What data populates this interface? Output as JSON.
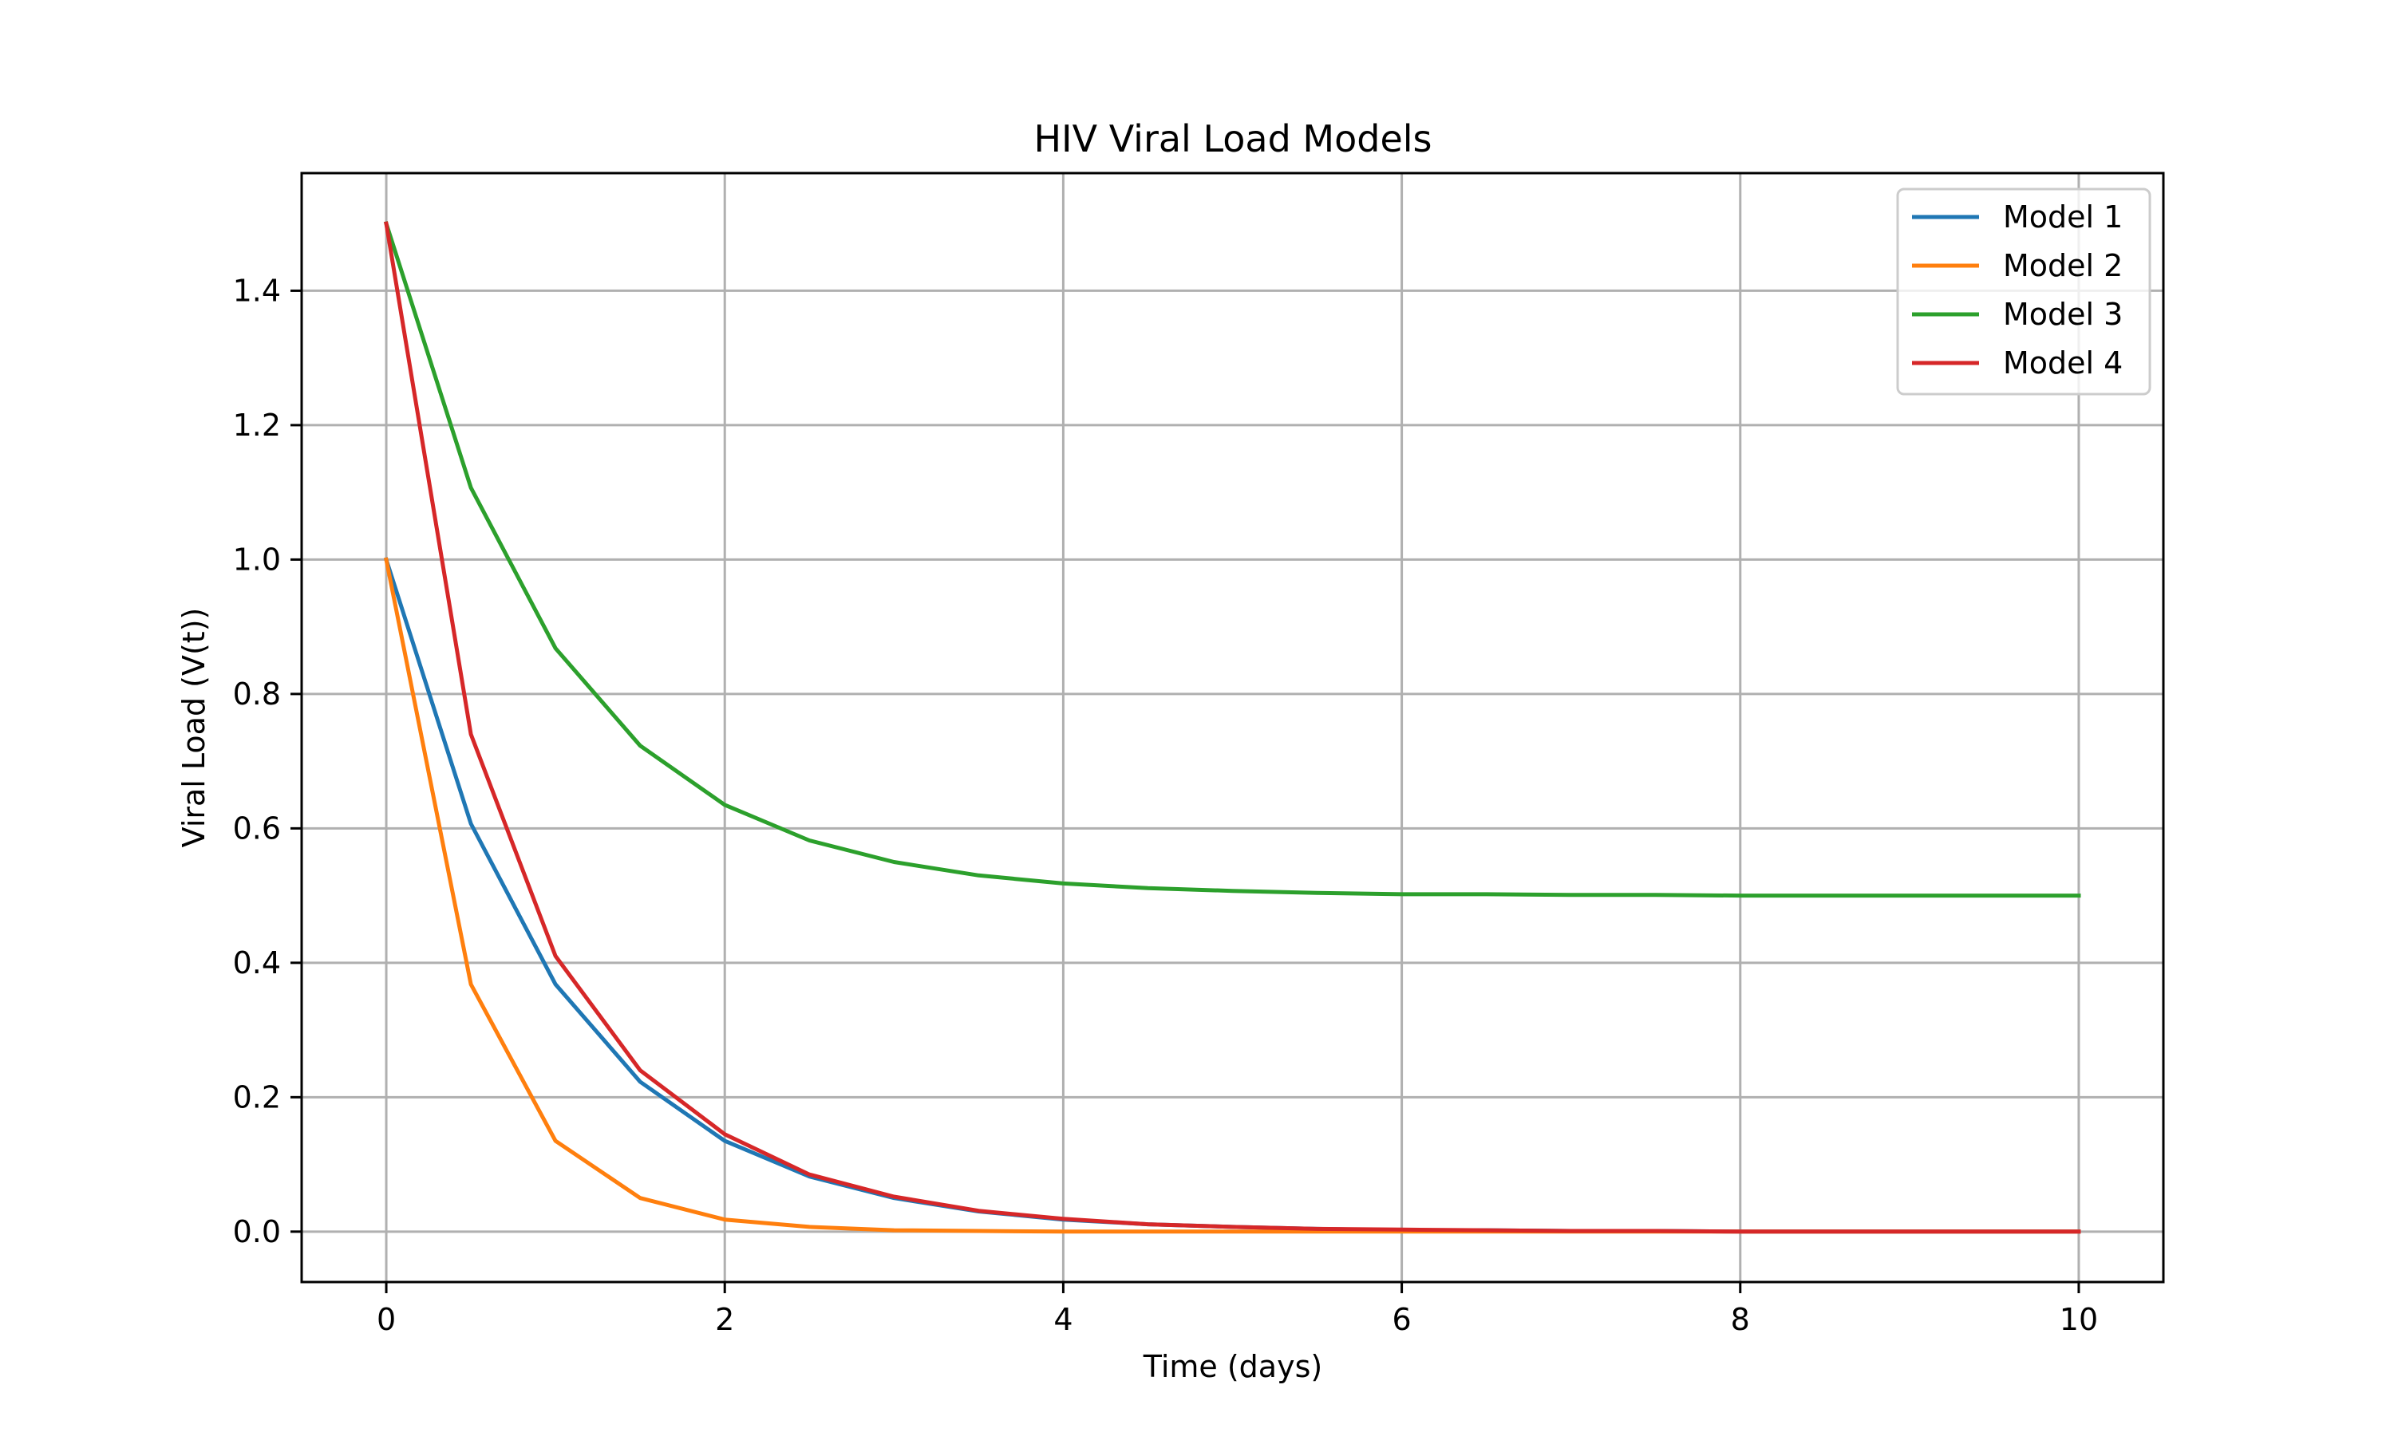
{
  "chart_data": {
    "type": "line",
    "title": "HIV Viral Load Models",
    "xlabel": "Time (days)",
    "ylabel": "Viral Load (V(t))",
    "xlim": [
      -0.5,
      10.5
    ],
    "ylim": [
      -0.075,
      1.575
    ],
    "xticks": [
      0,
      2,
      4,
      6,
      8,
      10
    ],
    "xtick_labels": [
      "0",
      "2",
      "4",
      "6",
      "8",
      "10"
    ],
    "yticks": [
      0.0,
      0.2,
      0.4,
      0.6,
      0.8,
      1.0,
      1.2,
      1.4
    ],
    "ytick_labels": [
      "0.0",
      "0.2",
      "0.4",
      "0.6",
      "0.8",
      "1.0",
      "1.2",
      "1.4"
    ],
    "grid": true,
    "legend_position": "top-right",
    "x": [
      0,
      0.5,
      1,
      1.5,
      2,
      2.5,
      3,
      3.5,
      4,
      4.5,
      5,
      5.5,
      6,
      6.5,
      7,
      7.5,
      8,
      8.5,
      9,
      9.5,
      10
    ],
    "series": [
      {
        "name": "Model 1",
        "color": "#1f77b4",
        "values": [
          1.0,
          0.607,
          0.368,
          0.223,
          0.135,
          0.082,
          0.05,
          0.03,
          0.018,
          0.011,
          0.007,
          0.004,
          0.002,
          0.002,
          0.001,
          0.001,
          0.0,
          0.0,
          0.0,
          0.0,
          0.0
        ]
      },
      {
        "name": "Model 2",
        "color": "#ff7f0e",
        "values": [
          1.0,
          0.368,
          0.135,
          0.05,
          0.018,
          0.007,
          0.002,
          0.001,
          0.0,
          0.0,
          0.0,
          0.0,
          0.0,
          0.0,
          0.0,
          0.0,
          0.0,
          0.0,
          0.0,
          0.0,
          0.0
        ]
      },
      {
        "name": "Model 3",
        "color": "#2ca02c",
        "values": [
          1.5,
          1.107,
          0.868,
          0.723,
          0.635,
          0.582,
          0.55,
          0.53,
          0.518,
          0.511,
          0.507,
          0.504,
          0.502,
          0.502,
          0.501,
          0.501,
          0.5,
          0.5,
          0.5,
          0.5,
          0.5
        ]
      },
      {
        "name": "Model 4",
        "color": "#d62728",
        "values": [
          1.5,
          0.74,
          0.41,
          0.24,
          0.145,
          0.085,
          0.052,
          0.031,
          0.019,
          0.011,
          0.007,
          0.004,
          0.003,
          0.002,
          0.001,
          0.001,
          0.0,
          0.0,
          0.0,
          0.0,
          0.0
        ]
      }
    ],
    "colors": {
      "grid": "#b0b0b0",
      "axes": "#000000",
      "background": "#ffffff",
      "legend_border": "#cccccc"
    }
  }
}
